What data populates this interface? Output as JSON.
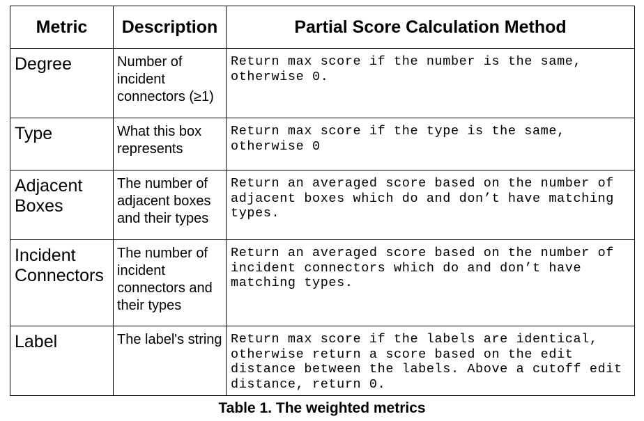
{
  "table": {
    "headers": [
      "Metric",
      "Description",
      "Partial Score Calculation Method"
    ],
    "rows": [
      {
        "metric": "Degree",
        "description": "Number of incident connectors (≥1)",
        "method": "Return max score if the number is the same, otherwise 0."
      },
      {
        "metric": "Type",
        "description": "What this box represents",
        "method": "Return max score if the type is the same, otherwise 0"
      },
      {
        "metric": "Adjacent Boxes",
        "description": "The number of adjacent boxes and their types",
        "method": "Return an averaged score based on the number of adjacent boxes which do and don’t have matching types."
      },
      {
        "metric": "Incident Connectors",
        "description": "The number of incident connectors and their types",
        "method": "Return an averaged score based on the number of incident connectors which do and don’t have matching types."
      },
      {
        "metric": "Label",
        "description": "The label's string",
        "method": "Return max score if the labels are identical, otherwise return a score based on the edit distance between the labels. Above a cutoff edit distance, return 0."
      }
    ]
  },
  "caption": "Table 1. The weighted metrics"
}
